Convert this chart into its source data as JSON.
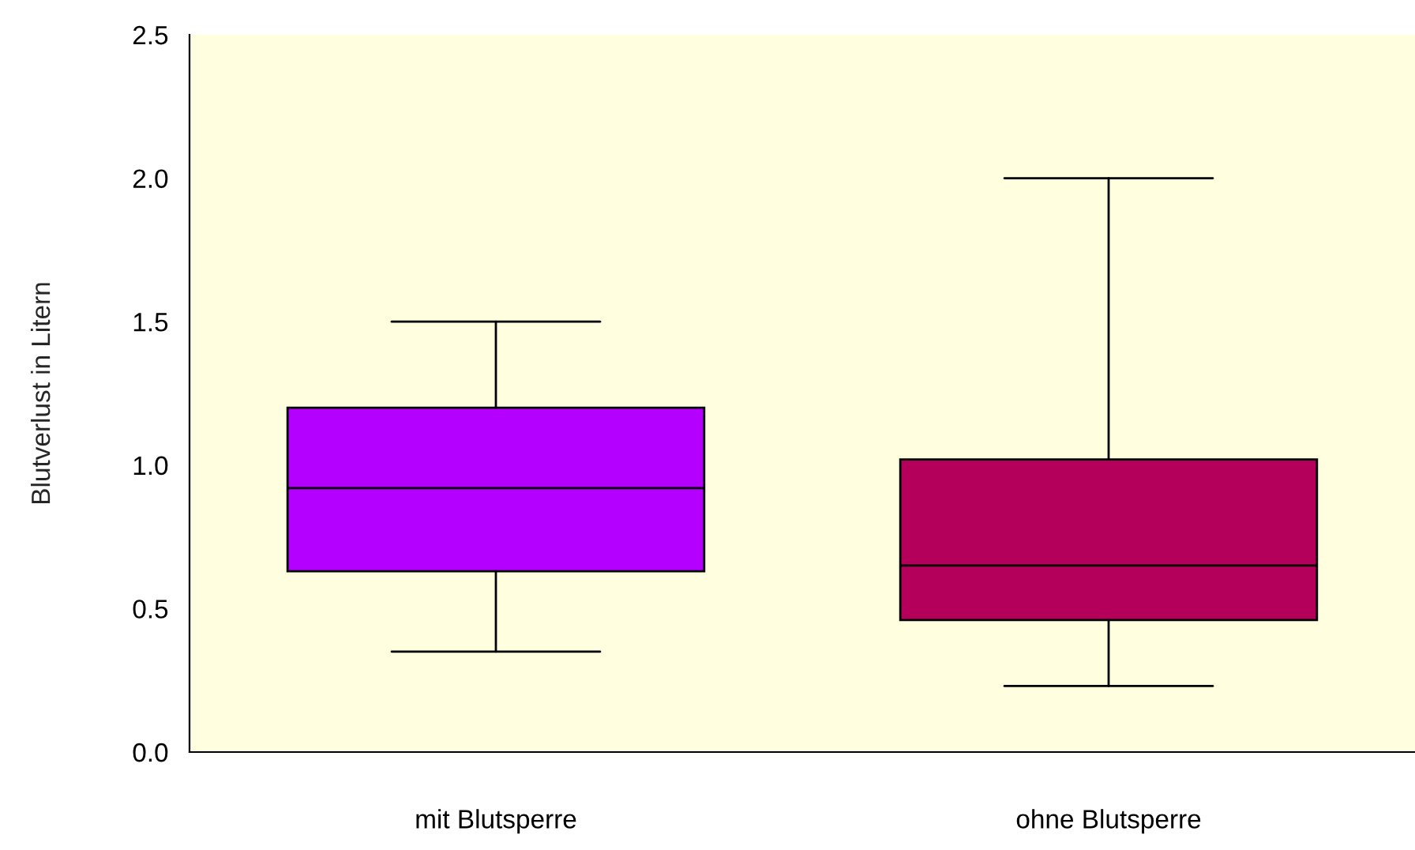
{
  "chart_data": {
    "type": "box",
    "ylabel": "Blutverlust in Litern",
    "categories": [
      "mit Blutsperre",
      "ohne Blutsperre"
    ],
    "boxes": [
      {
        "low": 0.35,
        "q1": 0.63,
        "median": 0.92,
        "q3": 1.2,
        "high": 1.5
      },
      {
        "low": 0.23,
        "q1": 0.46,
        "median": 0.65,
        "q3": 1.02,
        "high": 2.0
      }
    ],
    "colors": [
      "#b400ff",
      "#b4005a"
    ],
    "ylim": [
      0,
      2.5
    ],
    "yticks": [
      {
        "value": 0,
        "label": "0.0"
      },
      {
        "value": 0.5,
        "label": "0.5"
      },
      {
        "value": 1,
        "label": "1.0"
      },
      {
        "value": 1.5,
        "label": "1.5"
      },
      {
        "value": 2,
        "label": "2.0"
      },
      {
        "value": 2.5,
        "label": "2.5"
      }
    ],
    "grid": false,
    "legend": false
  }
}
